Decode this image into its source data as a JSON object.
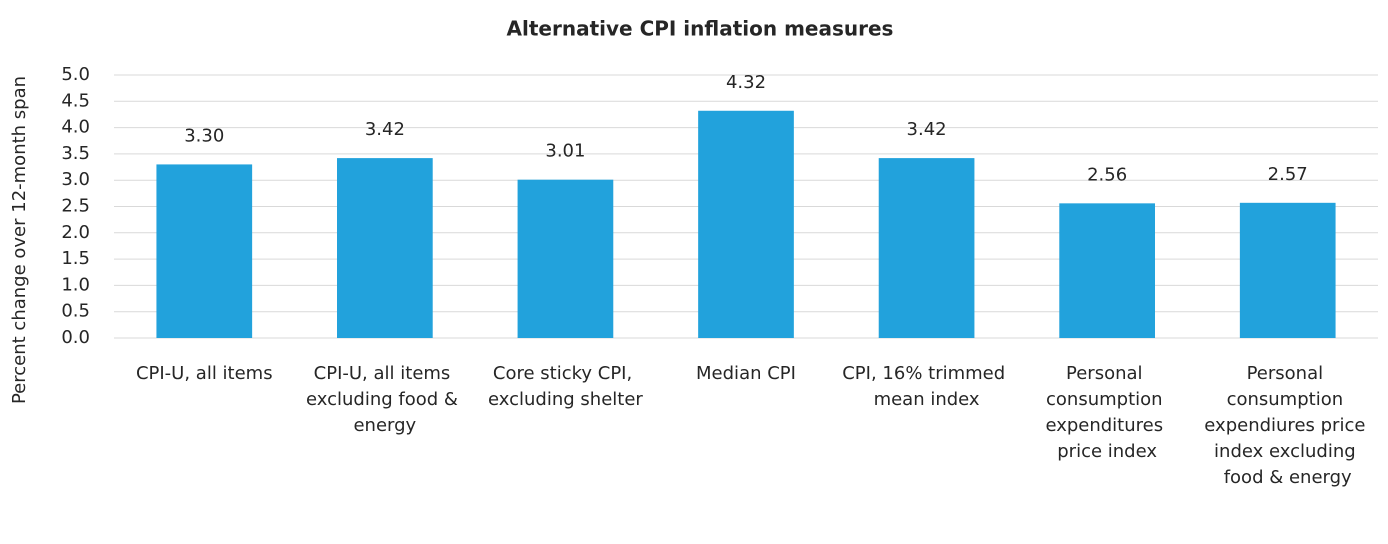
{
  "chart_data": {
    "type": "bar",
    "title": "Alternative CPI inflation measures",
    "y_label": "Percent change over 12-month span",
    "categories": [
      "CPI-U, all items",
      "CPI-U, all items excluding food & energy",
      "Core sticky CPI, excluding shelter",
      "Median CPI",
      "CPI, 16% trimmed mean index",
      "Personal consumption expenditures price index",
      "Personal consumption expendiures price index excluding food & energy"
    ],
    "values": [
      3.3,
      3.42,
      3.01,
      4.32,
      3.42,
      2.56,
      2.57
    ],
    "value_labels": [
      "3.30",
      "3.42",
      "3.01",
      "4.32",
      "3.42",
      "2.56",
      "2.57"
    ],
    "color": "#22a2dc",
    "ylim": [
      0,
      5
    ],
    "yticks": [
      {
        "value": 0,
        "label": "0.0"
      },
      0.5,
      {
        "value": 1,
        "label": "1.0"
      },
      1.5,
      {
        "value": 2,
        "label": "2.0"
      },
      2.5,
      {
        "value": 3,
        "label": "3.0"
      },
      3.5,
      {
        "value": 4,
        "label": "4.0"
      },
      4.5,
      {
        "value": 5,
        "label": "5.0"
      }
    ],
    "grid": true
  }
}
